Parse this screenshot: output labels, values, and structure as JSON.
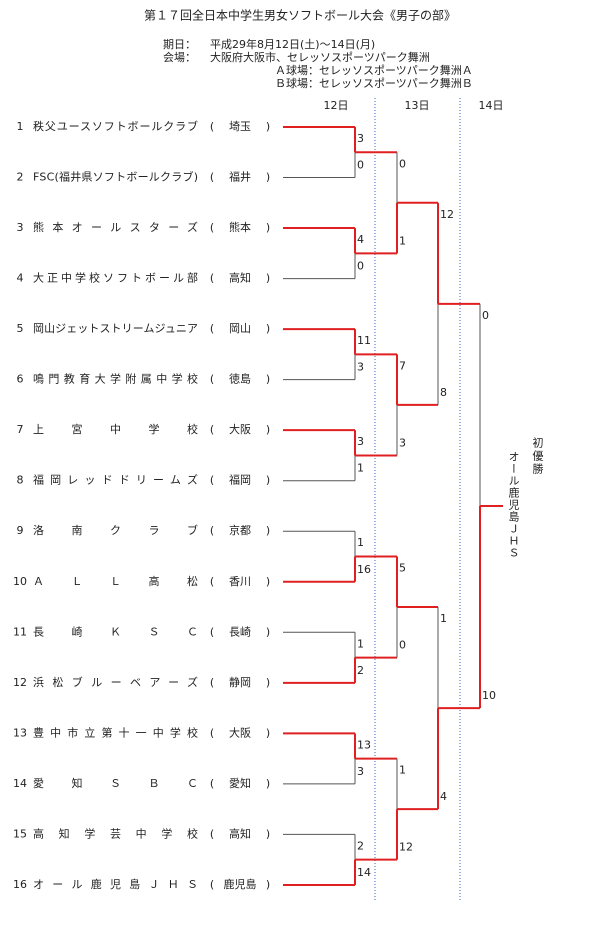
{
  "header": {
    "title": "第１７回全日本中学生男女ソフトボール大会《男子の部》",
    "date_label": "期日：",
    "date": "平成29年8月12日(土)～14日(月)",
    "venue_label": "会場：",
    "venue": "大阪府大阪市、セレッソスポーツパーク舞洲",
    "field_a": "Ａ球場：セレッソスポーツパーク舞洲Ａ",
    "field_b": "Ｂ球場：セレッソスポーツパーク舞洲Ｂ"
  },
  "days": [
    "12日",
    "13日",
    "14日"
  ],
  "pref_open": "(",
  "pref_close": ")",
  "teams": [
    {
      "no": 1,
      "name": "秩父ユースソフトボールクラブ",
      "pref": "埼玉"
    },
    {
      "no": 2,
      "name": "FSC(福井県ソフトボールクラブ)",
      "pref": "福井"
    },
    {
      "no": 3,
      "name": "熊本オールスターズ",
      "pref": "熊本"
    },
    {
      "no": 4,
      "name": "大正中学校ソフトボール部",
      "pref": "高知"
    },
    {
      "no": 5,
      "name": "岡山ジェットストリームジュニア",
      "pref": "岡山"
    },
    {
      "no": 6,
      "name": "鳴門教育大学附属中学校",
      "pref": "徳島"
    },
    {
      "no": 7,
      "name": "上宮中学校",
      "pref": "大阪"
    },
    {
      "no": 8,
      "name": "福岡レッドドリームズ",
      "pref": "福岡"
    },
    {
      "no": 9,
      "name": "洛南クラブ",
      "pref": "京都"
    },
    {
      "no": 10,
      "name": "ＡＬＬ高松",
      "pref": "香川"
    },
    {
      "no": 11,
      "name": "長崎ＫＳＣ",
      "pref": "長崎"
    },
    {
      "no": 12,
      "name": "浜松ブルーベアーズ",
      "pref": "静岡"
    },
    {
      "no": 13,
      "name": "豊中市立第十一中学校",
      "pref": "大阪"
    },
    {
      "no": 14,
      "name": "愛知ＳＢＣ",
      "pref": "愛知"
    },
    {
      "no": 15,
      "name": "高知学芸中学校",
      "pref": "高知"
    },
    {
      "no": 16,
      "name": "オール鹿児島ＪＨＳ",
      "pref": "鹿児島"
    }
  ],
  "rounds": [
    [
      {
        "scores": [
          3,
          0
        ],
        "winner": 0
      },
      {
        "scores": [
          4,
          0
        ],
        "winner": 0
      },
      {
        "scores": [
          11,
          3
        ],
        "winner": 0
      },
      {
        "scores": [
          3,
          1
        ],
        "winner": 0
      },
      {
        "scores": [
          1,
          16
        ],
        "winner": 1
      },
      {
        "scores": [
          1,
          2
        ],
        "winner": 1
      },
      {
        "scores": [
          13,
          3
        ],
        "winner": 0
      },
      {
        "scores": [
          2,
          14
        ],
        "winner": 1
      }
    ],
    [
      {
        "scores": [
          0,
          1
        ],
        "winner": 1
      },
      {
        "scores": [
          7,
          3
        ],
        "winner": 0
      },
      {
        "scores": [
          5,
          0
        ],
        "winner": 0
      },
      {
        "scores": [
          1,
          12
        ],
        "winner": 1
      }
    ],
    [
      {
        "scores": [
          12,
          8
        ],
        "winner": 0
      },
      {
        "scores": [
          1,
          4
        ],
        "winner": 1
      }
    ],
    [
      {
        "scores": [
          0,
          10
        ],
        "winner": 1
      }
    ]
  ],
  "champion": {
    "note": "初優勝",
    "team": "オール鹿児島ＪＨＳ"
  }
}
